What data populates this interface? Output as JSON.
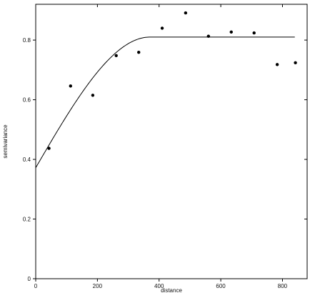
{
  "chart_data": {
    "type": "scatter",
    "xlabel": "distance",
    "ylabel": "semivariance",
    "xlim": [
      0,
      880
    ],
    "ylim": [
      0,
      0.92
    ],
    "x_ticks": [
      0,
      200,
      400,
      600,
      800
    ],
    "y_ticks": [
      0,
      0.2,
      0.4,
      0.6,
      0.8
    ],
    "x_tick_labels": [
      "0",
      "200",
      "400",
      "600",
      "800"
    ],
    "y_tick_labels": [
      "0",
      "0.2",
      "0.4",
      "0.6",
      "0.8"
    ],
    "grid": false,
    "points": [
      {
        "x": 43,
        "y": 0.437
      },
      {
        "x": 113,
        "y": 0.646
      },
      {
        "x": 185,
        "y": 0.615
      },
      {
        "x": 261,
        "y": 0.748
      },
      {
        "x": 334,
        "y": 0.759
      },
      {
        "x": 410,
        "y": 0.84
      },
      {
        "x": 486,
        "y": 0.891
      },
      {
        "x": 560,
        "y": 0.813
      },
      {
        "x": 634,
        "y": 0.827
      },
      {
        "x": 708,
        "y": 0.824
      },
      {
        "x": 783,
        "y": 0.718
      },
      {
        "x": 842,
        "y": 0.724
      }
    ],
    "fitted_model": {
      "type": "spherical",
      "nugget": 0.372,
      "sill": 0.81,
      "range": 370,
      "x_end": 840
    },
    "colors": {
      "points": "#000000",
      "line": "#000000",
      "axes": "#000000"
    }
  }
}
